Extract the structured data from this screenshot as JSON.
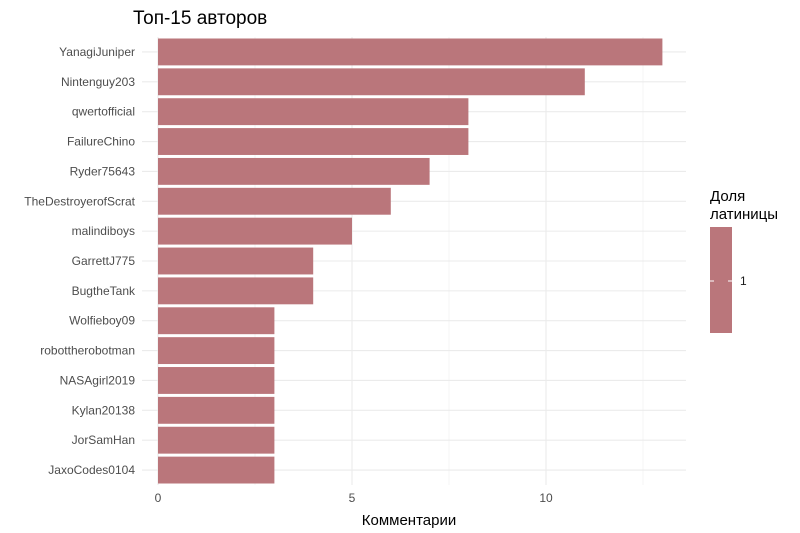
{
  "chart_data": {
    "type": "bar",
    "orientation": "horizontal",
    "title": "Топ-15 авторов",
    "xlabel": "Комментарии",
    "ylabel": "",
    "xlim": [
      0,
      13
    ],
    "x_ticks": [
      0,
      5,
      10
    ],
    "grid": true,
    "categories": [
      "YanagiJuniper",
      "Nintenguy203",
      "qwertofficial",
      "FailureChino",
      "Ryder75643",
      "TheDestroyerofScrat",
      "malindiboys",
      "GarrettJ775",
      "BugtheTank",
      "Wolfieboy09",
      "robottherobotman",
      "NASAgirl2019",
      "Kylan20138",
      "JorSamHan",
      "JaxoCodes0104"
    ],
    "values": [
      13,
      11,
      8,
      8,
      7,
      6,
      5,
      4,
      4,
      3,
      3,
      3,
      3,
      3,
      3
    ],
    "bar_color": "#BA767B",
    "legend": {
      "title_lines": [
        "Доля",
        "латиницы"
      ],
      "labels": [
        "1"
      ],
      "placement": "right"
    }
  }
}
